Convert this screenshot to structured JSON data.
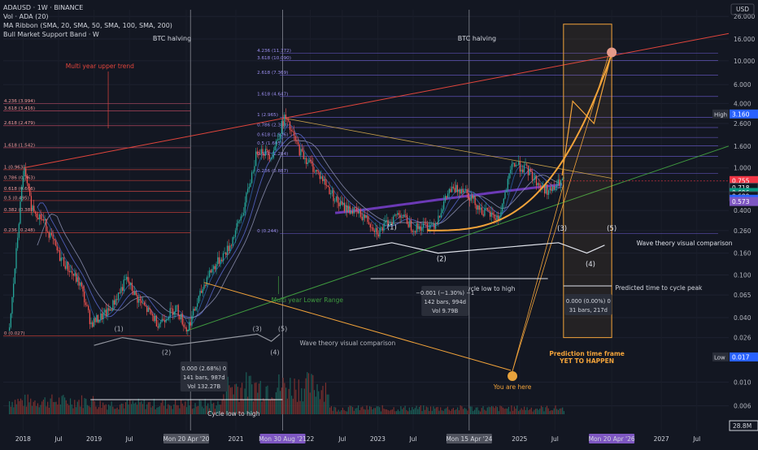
{
  "legend": {
    "symbol": "ADAUSD · 1W · BINANCE",
    "vol": "Vol · ADA (20)",
    "ribbon": "MA Ribbon (SMA, 20, SMA, 50, SMA, 100, SMA, 200)",
    "band": "Bull Market Support Band · W"
  },
  "currency": "USD",
  "colors": {
    "background": "#131722",
    "candle_up": "#26a69a",
    "candle_down": "#ef5350",
    "upper_trend": "#e2453c",
    "lower_range": "#3f9a3f",
    "orange": "#f2a33a",
    "fib": "#6f5fd6",
    "purple_band": "#7b3fd0"
  },
  "chart_data": {
    "type": "line",
    "title": "",
    "x_ticks": [
      "2018",
      "Jul",
      "2019",
      "Jul",
      "Mon 20 Apr '20",
      "2021",
      "Mon 30 Aug '21",
      "22",
      "Jul",
      "2023",
      "Jul",
      "Mon 15 Apr '24",
      "2025",
      "Jul",
      "Mon 20 Apr '26",
      "2027",
      "Jul"
    ],
    "y_ticks": [
      "26.000",
      "16.000",
      "10.000",
      "6.000",
      "4.000",
      "2.600",
      "1.600",
      "1.000",
      "0.600",
      "0.400",
      "0.260",
      "0.160",
      "0.100",
      "0.065",
      "0.040",
      "0.026",
      "0.010",
      "0.006"
    ],
    "y_scale": "log",
    "price_labels": [
      {
        "label": "High",
        "value": "3.160",
        "color": "#2962ff"
      },
      {
        "value": "0.755",
        "sub": "3d 5h",
        "color": "#f23645"
      },
      {
        "value": "0.718",
        "color": "#131722"
      },
      {
        "value": "0.696",
        "color": "#089981"
      },
      {
        "value": "0.689",
        "color": "#131722"
      },
      {
        "value": "0.623",
        "color": "#2962ff"
      },
      {
        "value": "0.573",
        "color": "#7e57c2"
      },
      {
        "label": "Low",
        "value": "0.017",
        "color": "#2962ff"
      }
    ],
    "volume_label": "28.8M",
    "price_series": [
      {
        "x": 2017.8,
        "y": 0.03
      },
      {
        "x": 2018.0,
        "y": 1.0
      },
      {
        "x": 2018.1,
        "y": 0.45
      },
      {
        "x": 2018.3,
        "y": 0.3
      },
      {
        "x": 2018.5,
        "y": 0.15
      },
      {
        "x": 2018.8,
        "y": 0.08
      },
      {
        "x": 2018.95,
        "y": 0.035
      },
      {
        "x": 2019.2,
        "y": 0.045
      },
      {
        "x": 2019.45,
        "y": 0.09
      },
      {
        "x": 2019.6,
        "y": 0.06
      },
      {
        "x": 2019.9,
        "y": 0.035
      },
      {
        "x": 2020.15,
        "y": 0.05
      },
      {
        "x": 2020.3,
        "y": 0.03
      },
      {
        "x": 2020.6,
        "y": 0.1
      },
      {
        "x": 2020.9,
        "y": 0.18
      },
      {
        "x": 2021.1,
        "y": 0.4
      },
      {
        "x": 2021.3,
        "y": 1.5
      },
      {
        "x": 2021.5,
        "y": 1.3
      },
      {
        "x": 2021.68,
        "y": 2.95
      },
      {
        "x": 2021.9,
        "y": 1.4
      },
      {
        "x": 2022.2,
        "y": 0.8
      },
      {
        "x": 2022.45,
        "y": 0.45
      },
      {
        "x": 2022.8,
        "y": 0.35
      },
      {
        "x": 2023.0,
        "y": 0.25
      },
      {
        "x": 2023.3,
        "y": 0.38
      },
      {
        "x": 2023.5,
        "y": 0.27
      },
      {
        "x": 2023.8,
        "y": 0.3
      },
      {
        "x": 2024.0,
        "y": 0.6
      },
      {
        "x": 2024.2,
        "y": 0.65
      },
      {
        "x": 2024.45,
        "y": 0.4
      },
      {
        "x": 2024.7,
        "y": 0.33
      },
      {
        "x": 2024.9,
        "y": 1.1
      },
      {
        "x": 2025.1,
        "y": 0.95
      },
      {
        "x": 2025.3,
        "y": 0.65
      },
      {
        "x": 2025.45,
        "y": 0.6
      },
      {
        "x": 2025.55,
        "y": 0.72
      },
      {
        "x": 2025.62,
        "y": 0.755
      }
    ],
    "fib_levels_2021": [
      {
        "label": "4.236 (11.772)",
        "value": 11.772
      },
      {
        "label": "3.618 (10.090)",
        "value": 10.09
      },
      {
        "label": "2.618 (7.369)",
        "value": 7.369
      },
      {
        "label": "1.618 (4.647)",
        "value": 4.647
      },
      {
        "label": "1 (2.965)",
        "value": 2.965
      },
      {
        "label": "0.786 (2.383)",
        "value": 2.383
      },
      {
        "label": "0.618 (1.926)",
        "value": 1.926
      },
      {
        "label": "0.5 (1.605)",
        "value": 1.605
      },
      {
        "label": "0.382 (1.284)",
        "value": 1.284
      },
      {
        "label": "0.236 (0.887)",
        "value": 0.887
      },
      {
        "label": "0 (0.244)",
        "value": 0.244
      }
    ],
    "fib_levels_2018": [
      {
        "label": "4.236 (3.994)",
        "value": 3.994
      },
      {
        "label": "3.618 (3.416)",
        "value": 3.416
      },
      {
        "label": "2.618 (2.479)",
        "value": 2.479
      },
      {
        "label": "1.618 (1.542)",
        "value": 1.542
      },
      {
        "label": "1 (0.963)",
        "value": 0.963
      },
      {
        "label": "0.786 (0.763)",
        "value": 0.763
      },
      {
        "label": "0.618 (0.606)",
        "value": 0.606
      },
      {
        "label": "0.5 (0.495)",
        "value": 0.495
      },
      {
        "label": "0.382 (0.385)",
        "value": 0.385
      },
      {
        "label": "0.236 (0.248)",
        "value": 0.248
      },
      {
        "label": "0 (0.027)",
        "value": 0.027
      }
    ],
    "annotations": {
      "btc_halving": "BTC halving",
      "upper_trend": "Multi year upper trend",
      "lower_range": "Multi year Lower Range",
      "wave_comparison": "Wave theory visual comparison",
      "cycle_low_high": "Cycle low to high",
      "predicted": "Predicted time to cycle peak",
      "prediction_line1": "Prediction time frame",
      "prediction_line2": "YET TO HAPPEN",
      "you_are_here": "You are here",
      "wave_labels_2019": [
        "(1)",
        "(2)",
        "(3)",
        "(4)",
        "(5)"
      ],
      "wave_labels_2023": [
        "(1)",
        "(2)",
        "(3)",
        "(4)",
        "(5)"
      ],
      "measure_2020": {
        "l1": "0.000 (2.68%) 0",
        "l2": "141 bars, 987d",
        "l3": "Vol 132.27B"
      },
      "measure_2024": {
        "l1": "−0.001 (−1.30%) −1",
        "l2": "142 bars, 994d",
        "l3": "Vol 9.79B"
      },
      "measure_2026": {
        "l1": "0.000 (0.00%) 0",
        "l2": "31 bars, 217d"
      }
    }
  }
}
